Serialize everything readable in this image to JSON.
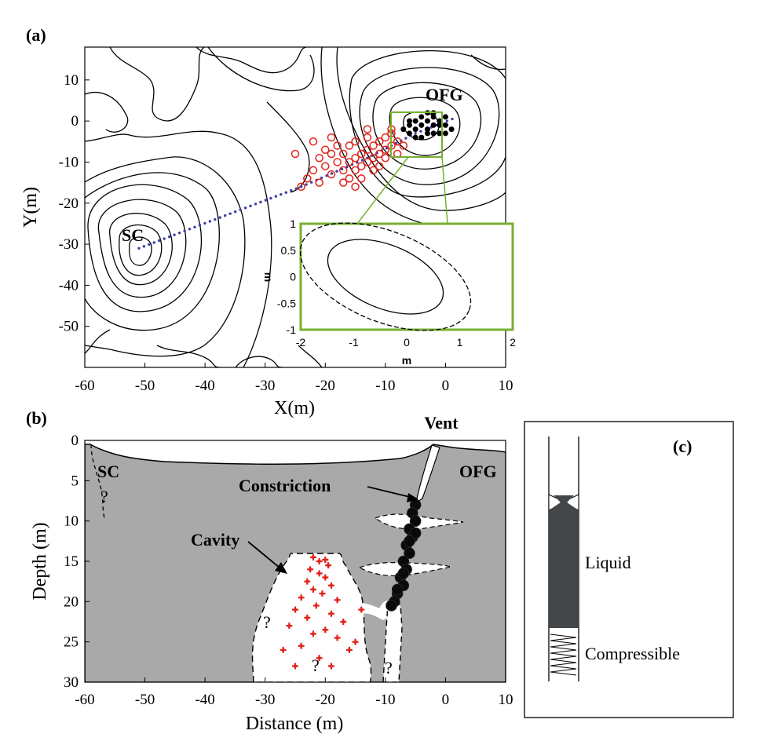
{
  "panels": {
    "a": {
      "label": "(a)"
    },
    "b": {
      "label": "(b)"
    },
    "c": {
      "label": "(c)",
      "labels": [
        "Liquid",
        "Compressible"
      ]
    }
  },
  "chart_data": [
    {
      "type": "scatter",
      "panel": "(a)",
      "xlabel": "X(m)",
      "ylabel": "Y(m)",
      "xlim": [
        -60,
        10
      ],
      "ylim": [
        -60,
        18
      ],
      "xticks": [
        -60,
        -50,
        -40,
        -30,
        -20,
        -10,
        0,
        10
      ],
      "yticks": [
        10,
        0,
        -10,
        -20,
        -30,
        -40,
        -50
      ],
      "annotations": [
        "SC",
        "OFG"
      ],
      "series": [
        {
          "marker": "red open circle",
          "points": [
            [
              -24,
              -16
            ],
            [
              -23,
              -14
            ],
            [
              -22,
              -12
            ],
            [
              -21,
              -9
            ],
            [
              -20,
              -7
            ],
            [
              -20,
              -11
            ],
            [
              -19,
              -8
            ],
            [
              -19,
              -13
            ],
            [
              -18,
              -10
            ],
            [
              -18,
              -6
            ],
            [
              -17,
              -12
            ],
            [
              -17,
              -8
            ],
            [
              -16,
              -10
            ],
            [
              -16,
              -14
            ],
            [
              -16,
              -6
            ],
            [
              -15,
              -9
            ],
            [
              -15,
              -12
            ],
            [
              -15,
              -5
            ],
            [
              -14,
              -8
            ],
            [
              -14,
              -11
            ],
            [
              -14,
              -14
            ],
            [
              -13,
              -7
            ],
            [
              -13,
              -10
            ],
            [
              -13,
              -4
            ],
            [
              -12,
              -9
            ],
            [
              -12,
              -12
            ],
            [
              -12,
              -6
            ],
            [
              -11,
              -8
            ],
            [
              -11,
              -5
            ],
            [
              -11,
              -11
            ],
            [
              -10,
              -7
            ],
            [
              -10,
              -4
            ],
            [
              -10,
              -9
            ],
            [
              -9,
              -6
            ],
            [
              -9,
              -3
            ],
            [
              -8,
              -8
            ],
            [
              -8,
              -5
            ],
            [
              -7,
              -6
            ],
            [
              -17,
              -15
            ],
            [
              -15,
              -16
            ],
            [
              -21,
              -15
            ],
            [
              -19,
              -4
            ],
            [
              -25,
              -8
            ],
            [
              -22,
              -5
            ],
            [
              -13,
              -2
            ],
            [
              -9,
              -2
            ]
          ]
        },
        {
          "marker": "black filled cluster",
          "points": [
            [
              -7,
              -2
            ],
            [
              -6,
              -1
            ],
            [
              -6,
              -3
            ],
            [
              -5,
              0
            ],
            [
              -5,
              -2
            ],
            [
              -4,
              -1
            ],
            [
              -4,
              1
            ],
            [
              -3,
              0
            ],
            [
              -3,
              -2
            ],
            [
              -2,
              -1
            ],
            [
              -2,
              1
            ],
            [
              -1,
              -1
            ],
            [
              -1,
              0
            ],
            [
              0,
              -1
            ],
            [
              0,
              1
            ],
            [
              -4,
              -4
            ],
            [
              -3,
              -3
            ],
            [
              -5,
              -4
            ],
            [
              -2,
              -3
            ],
            [
              1,
              -2
            ],
            [
              -1,
              -3
            ],
            [
              -6,
              0
            ],
            [
              0,
              -3
            ],
            [
              -3,
              2
            ],
            [
              -2,
              2
            ]
          ]
        },
        {
          "marker": "blue dotted line",
          "points": [
            [
              -51,
              -31
            ],
            [
              -24,
              -16
            ],
            [
              -13,
              -9
            ],
            [
              -5,
              -3
            ],
            [
              2,
              1
            ]
          ]
        }
      ],
      "contour_levels": "topographic contours (unlabeled)"
    },
    {
      "type": "line",
      "panel": "(a) inset",
      "xlabel": "m",
      "ylabel": "m",
      "xlim": [
        -2,
        2
      ],
      "ylim": [
        -1,
        1
      ],
      "xticks": [
        -2,
        -1,
        0,
        1,
        2
      ],
      "yticks": [
        1,
        0.5,
        0,
        -0.5,
        -1
      ],
      "series": [
        {
          "name": "",
          "style": "solid ellipse",
          "center": [
            -0.4,
            0
          ],
          "semi_axes": [
            1.15,
            0.6
          ]
        },
        {
          "name": "",
          "style": "dashed ellipse",
          "center": [
            -0.4,
            0
          ],
          "semi_axes": [
            1.7,
            0.85
          ]
        }
      ]
    },
    {
      "type": "scatter",
      "panel": "(b)",
      "xlabel": "Distance (m)",
      "ylabel": "Depth (m)",
      "xlim": [
        -60,
        10
      ],
      "ylim": [
        30,
        0
      ],
      "xticks": [
        -60,
        -50,
        -40,
        -30,
        -20,
        -10,
        0,
        10
      ],
      "yticks": [
        0,
        5,
        10,
        15,
        20,
        25,
        30
      ],
      "annotations": [
        "Vent",
        "SC",
        "OFG",
        "Constriction",
        "Cavity",
        "?"
      ],
      "series": [
        {
          "marker": "red star",
          "points": [
            [
              -22,
              14.5
            ],
            [
              -21,
              15
            ],
            [
              -20,
              14.8
            ],
            [
              -19.5,
              15.5
            ],
            [
              -22.5,
              16
            ],
            [
              -21,
              16.5
            ],
            [
              -20,
              17
            ],
            [
              -23,
              17.5
            ],
            [
              -19,
              18
            ],
            [
              -22,
              18.5
            ],
            [
              -20.5,
              19
            ],
            [
              -24,
              19.5
            ],
            [
              -18,
              19.8
            ],
            [
              -21.5,
              20.5
            ],
            [
              -25,
              21
            ],
            [
              -19,
              21.5
            ],
            [
              -23,
              22
            ],
            [
              -17,
              22.5
            ],
            [
              -26,
              23
            ],
            [
              -20,
              23.5
            ],
            [
              -22,
              24
            ],
            [
              -18,
              24.5
            ],
            [
              -24,
              25.5
            ],
            [
              -27,
              26
            ],
            [
              -16,
              26
            ],
            [
              -21,
              27
            ],
            [
              -19,
              28
            ],
            [
              -25,
              28
            ],
            [
              -15,
              25
            ],
            [
              -14,
              21
            ]
          ]
        },
        {
          "marker": "black filled cluster",
          "points": [
            [
              -5,
              8
            ],
            [
              -5.5,
              9
            ],
            [
              -5,
              10
            ],
            [
              -6,
              11
            ],
            [
              -5.5,
              12
            ],
            [
              -6.5,
              13
            ],
            [
              -6,
              14
            ],
            [
              -7,
              15
            ],
            [
              -6.5,
              16
            ],
            [
              -7.5,
              17
            ],
            [
              -7,
              18
            ],
            [
              -8,
              19
            ],
            [
              -8.5,
              20
            ],
            [
              -9,
              20.5
            ],
            [
              -5,
              11.5
            ],
            [
              -6,
              12.5
            ],
            [
              -7,
              16.5
            ],
            [
              -8,
              18.5
            ]
          ]
        }
      ]
    }
  ]
}
